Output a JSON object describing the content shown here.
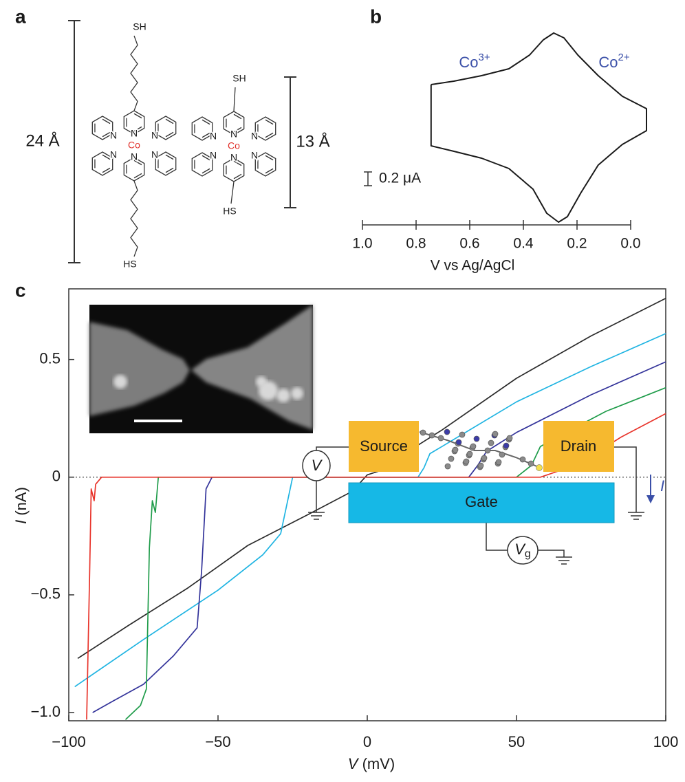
{
  "panel_a": {
    "label": "a",
    "molecules": [
      {
        "top": "SH",
        "bottom": "HS",
        "metal": "Co",
        "nitrogen": [
          "N",
          "N",
          "N",
          "N",
          "N",
          "N"
        ],
        "length": "24 Å"
      },
      {
        "top": "SH",
        "bottom": "HS",
        "metal": "Co",
        "nitrogen": [
          "N",
          "N",
          "N",
          "N",
          "N",
          "N"
        ],
        "length": "13 Å"
      }
    ]
  },
  "chart_data": [
    {
      "type": "cyclic_voltammogram",
      "label": "b",
      "xlabel": "V vs Ag/AgCl",
      "xlim": [
        1.0,
        0.0
      ],
      "xticks": [
        {
          "value": 1.0,
          "label": "1.0"
        },
        0.8,
        0.6,
        0.4,
        0.2,
        {
          "value": 0.0,
          "label": "0.0"
        }
      ],
      "annotations": [
        {
          "base": "Co",
          "sup": "3+",
          "color": "#3a4fa8"
        },
        {
          "base": "Co",
          "sup": "2+",
          "color": "#3a4fa8"
        }
      ],
      "scale_bar": {
        "value": 0.2,
        "label": "0.2 μA"
      },
      "series": [
        {
          "color": "#1a1a1a",
          "x": [
            0.744,
            0.659,
            0.556,
            0.454,
            0.377,
            0.326,
            0.287,
            0.249,
            0.197,
            0.121,
            0.031,
            -0.059,
            -0.059,
            0.031,
            0.121,
            0.185,
            0.236,
            0.269,
            0.313,
            0.364,
            0.454,
            0.556,
            0.659,
            0.744,
            0.744
          ],
          "values": [
            0.62,
            0.67,
            0.75,
            0.85,
            1.05,
            1.27,
            1.37,
            1.3,
            1.05,
            0.75,
            0.45,
            0.27,
            -0.05,
            -0.25,
            -0.55,
            -0.95,
            -1.3,
            -1.38,
            -1.25,
            -0.9,
            -0.6,
            -0.45,
            -0.35,
            -0.27,
            0.62
          ]
        }
      ]
    },
    {
      "type": "line",
      "label": "c",
      "xlabel": {
        "symbol": "V",
        "unit": " (mV)"
      },
      "ylabel": {
        "symbol": "I",
        "unit": " (nA)"
      },
      "xlim": [
        -100,
        100
      ],
      "ylim": [
        -1.035,
        0.8
      ],
      "xticks": [
        {
          "value": -100,
          "label": "−100"
        },
        {
          "value": -50,
          "label": "−50"
        },
        0,
        50,
        100
      ],
      "yticks": [
        {
          "value": -1.0,
          "label": "−1.0"
        },
        {
          "value": -0.5,
          "label": "−0.5"
        },
        0,
        0.5
      ],
      "series": [
        {
          "color": "#2b2b2b",
          "x": [
            -97,
            -80,
            -60,
            -50,
            -40,
            -20,
            -5,
            0,
            5,
            10,
            15,
            25,
            50,
            75,
            100
          ],
          "values": [
            -0.77,
            -0.63,
            -0.47,
            -0.38,
            -0.29,
            -0.16,
            -0.06,
            0.01,
            0.03,
            0.06,
            0.12,
            0.2,
            0.42,
            0.6,
            0.76
          ]
        },
        {
          "color": "#1fb4e2",
          "x": [
            -98,
            -75,
            -50,
            -35,
            -29,
            -27,
            -25,
            17,
            19,
            21,
            25,
            50,
            75,
            100
          ],
          "values": [
            -0.89,
            -0.69,
            -0.48,
            -0.33,
            -0.24,
            -0.12,
            0,
            0,
            0.04,
            0.1,
            0.13,
            0.32,
            0.47,
            0.61
          ]
        },
        {
          "color": "#33339a",
          "x": [
            -92,
            -85,
            -75,
            -65,
            -57,
            -55.5,
            -54,
            -52,
            34,
            37,
            40,
            50,
            75,
            100
          ],
          "values": [
            -1.0,
            -0.95,
            -0.88,
            -0.76,
            -0.64,
            -0.4,
            -0.05,
            0,
            0,
            0.05,
            0.11,
            0.19,
            0.35,
            0.49
          ]
        },
        {
          "color": "#1f9c4a",
          "x": [
            -81,
            -76,
            -74,
            -73,
            -72,
            -71,
            -70,
            50,
            55,
            58,
            65,
            80,
            100
          ],
          "values": [
            -1.03,
            -0.97,
            -0.9,
            -0.3,
            -0.1,
            -0.15,
            0,
            0,
            0.05,
            0.13,
            0.18,
            0.28,
            0.38
          ]
        },
        {
          "color": "#e8332a",
          "x": [
            -94,
            -93,
            -92.5,
            -91.5,
            -91,
            -89,
            58,
            65,
            75,
            85,
            100
          ],
          "values": [
            -1.03,
            -0.4,
            -0.05,
            -0.1,
            -0.03,
            0,
            0,
            0.03,
            0.09,
            0.17,
            0.27
          ]
        }
      ],
      "inset": {
        "source": "Source",
        "drain": "Drain",
        "gate": "Gate",
        "voltage": "V",
        "gate_voltage": {
          "symbol": "V",
          "sub": "g"
        },
        "current": "I"
      }
    }
  ]
}
